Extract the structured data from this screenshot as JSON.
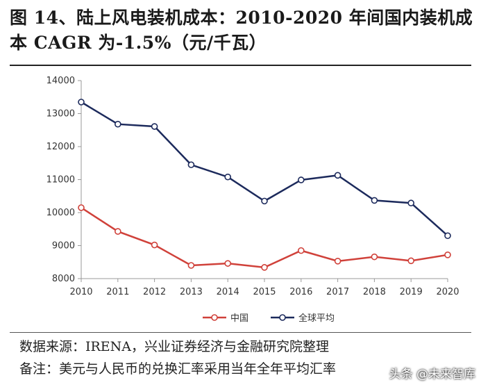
{
  "title": "图 14、陆上风电装机成本：2010-2020 年间国内装机成本 CAGR 为-1.5%（元/千瓦）",
  "source": "数据来源：IRENA，兴业证券经济与金融研究院整理",
  "note": "备注：美元与人民币的兑换汇率采用当年全年平均汇率",
  "watermark": "头条 @未来智库",
  "colors": {
    "china": "#d0413a",
    "global": "#1c2a5c",
    "axis": "#999999",
    "text": "#333333"
  },
  "chart_data": {
    "type": "line",
    "x": [
      "2010",
      "2011",
      "2012",
      "2013",
      "2014",
      "2015",
      "2016",
      "2017",
      "2018",
      "2019",
      "2020"
    ],
    "ylim": [
      8000,
      14000
    ],
    "yticks": [
      8000,
      9000,
      10000,
      11000,
      12000,
      13000,
      14000
    ],
    "grid": false,
    "legend_position": "bottom",
    "series": [
      {
        "name": "中国",
        "color": "#d0413a",
        "values": [
          10150,
          9430,
          9020,
          8400,
          8460,
          8340,
          8850,
          8530,
          8660,
          8540,
          8720
        ]
      },
      {
        "name": "全球平均",
        "color": "#1c2a5c",
        "values": [
          13350,
          12680,
          12610,
          11450,
          11080,
          10350,
          10990,
          11130,
          10370,
          10290,
          9300
        ]
      }
    ]
  }
}
